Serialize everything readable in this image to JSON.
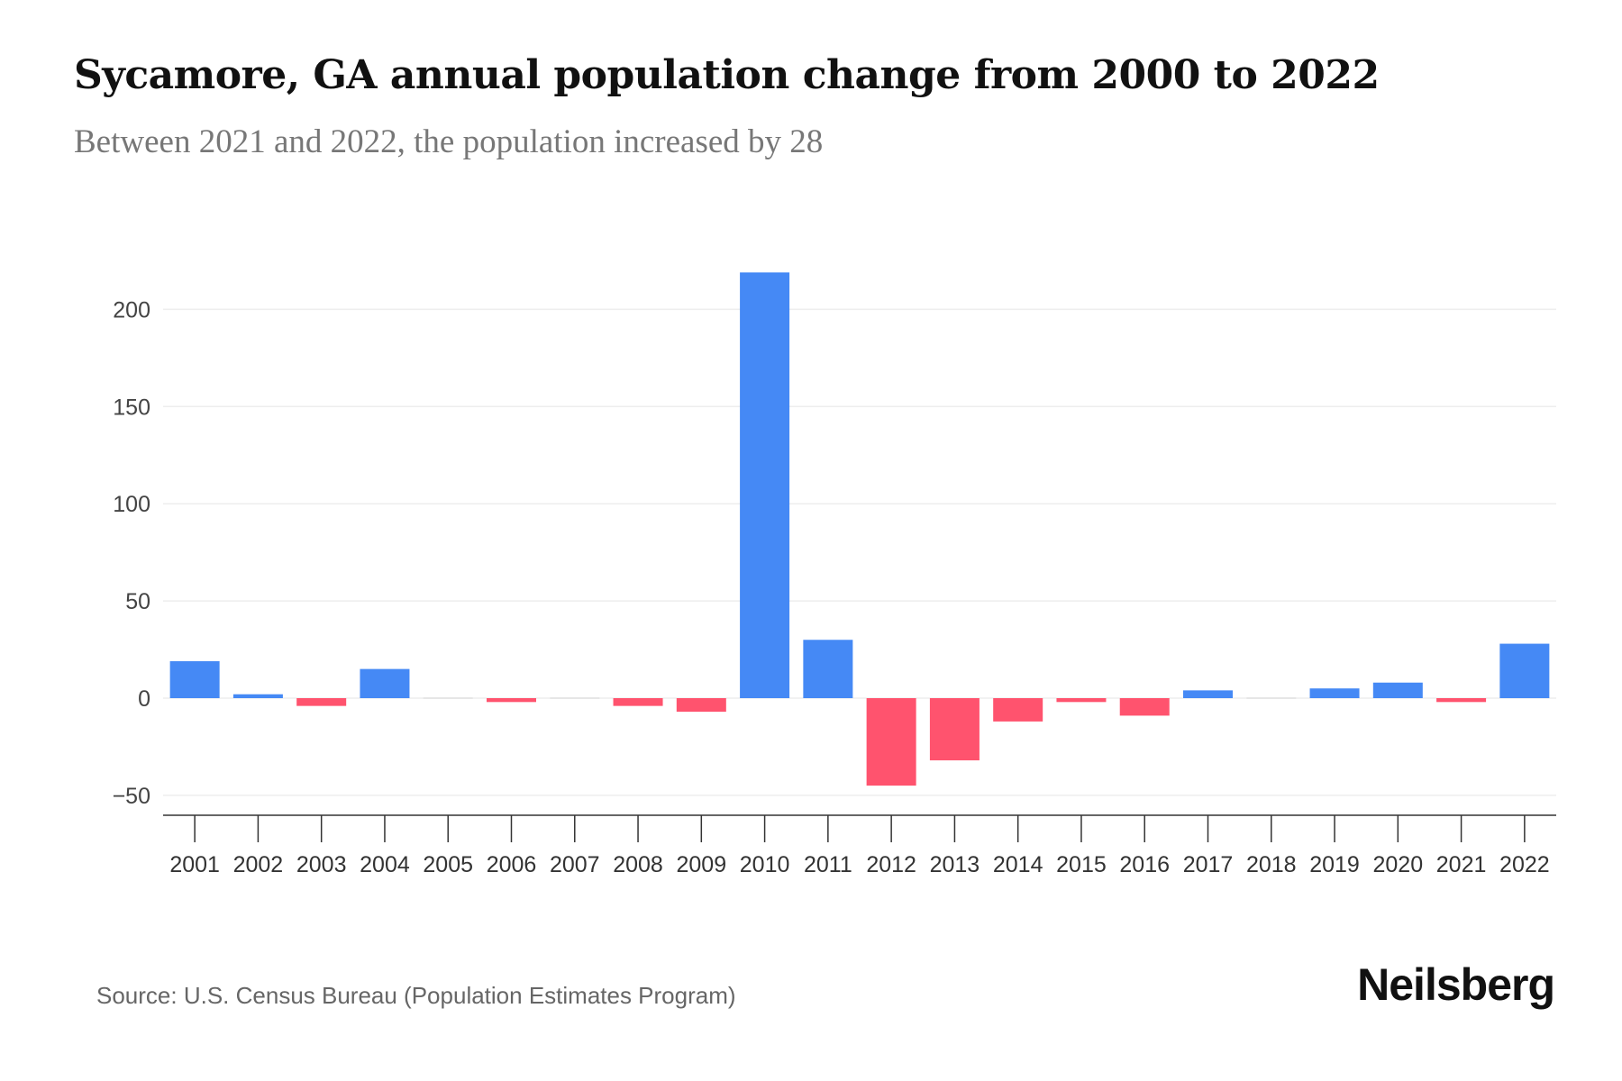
{
  "title": "Sycamore, GA annual population change from 2000 to 2022",
  "subtitle": "Between 2021 and 2022, the population increased by 28",
  "source": "Source: U.S. Census Bureau (Population Estimates Program)",
  "logo": "Neilsberg",
  "colors": {
    "positive": "#4589f5",
    "negative": "#ff536e",
    "grid": "#eeeeee",
    "axis": "#333333"
  },
  "chart_data": {
    "type": "bar",
    "title": "Sycamore, GA annual population change from 2000 to 2022",
    "xlabel": "",
    "ylabel": "",
    "ylim": [
      -55,
      225
    ],
    "yticks": [
      -50,
      0,
      50,
      100,
      150,
      200
    ],
    "ytick_labels": [
      "−50",
      "0",
      "50",
      "100",
      "150",
      "200"
    ],
    "grid": true,
    "categories": [
      "2001",
      "2002",
      "2003",
      "2004",
      "2005",
      "2006",
      "2007",
      "2008",
      "2009",
      "2010",
      "2011",
      "2012",
      "2013",
      "2014",
      "2015",
      "2016",
      "2017",
      "2018",
      "2019",
      "2020",
      "2021",
      "2022"
    ],
    "values": [
      19,
      2,
      -4,
      15,
      0,
      -2,
      0,
      -4,
      -7,
      219,
      30,
      -45,
      -32,
      -12,
      -2,
      -9,
      4,
      0,
      5,
      8,
      -2,
      28
    ]
  }
}
